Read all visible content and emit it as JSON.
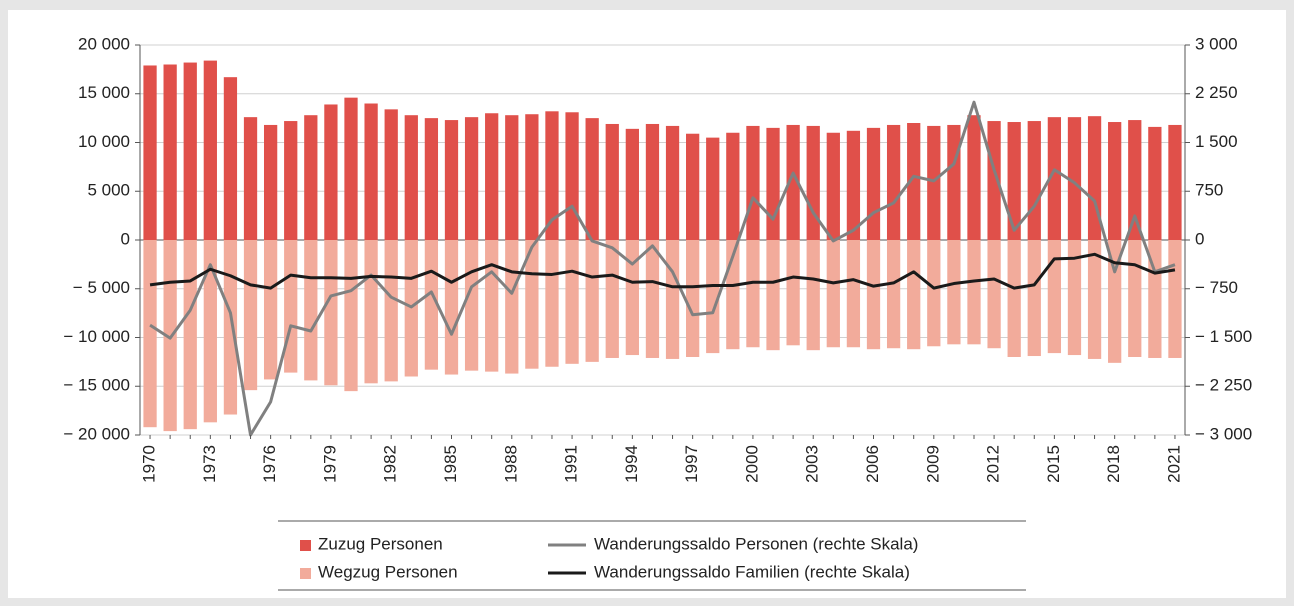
{
  "chart_data": {
    "type": "bar",
    "categories": [
      "1970",
      null,
      null,
      "1973",
      null,
      null,
      "1976",
      null,
      null,
      "1979",
      null,
      null,
      "1982",
      null,
      null,
      "1985",
      null,
      null,
      "1988",
      null,
      null,
      "1991",
      null,
      null,
      "1994",
      null,
      null,
      "1997",
      null,
      null,
      "2000",
      null,
      null,
      "2003",
      null,
      null,
      "2006",
      null,
      null,
      "2009",
      null,
      null,
      "2012",
      null,
      null,
      "2015",
      null,
      null,
      "2018",
      null,
      null,
      "2021"
    ],
    "series": [
      {
        "name": "Zuzug Personen",
        "type": "bar",
        "color": "#e0504a",
        "values": [
          17900,
          18000,
          18200,
          18400,
          16700,
          12600,
          11800,
          12200,
          12800,
          13900,
          14600,
          14000,
          13400,
          12800,
          12500,
          12300,
          12600,
          13000,
          12800,
          12900,
          13200,
          13100,
          12500,
          11900,
          11400,
          11900,
          11700,
          10900,
          10500,
          11000,
          11700,
          11500,
          11800,
          11700,
          11000,
          11200,
          11500,
          11800,
          12000,
          11700,
          11800,
          12800,
          12200,
          12100,
          12200,
          12600,
          12600,
          12700,
          12100,
          12300,
          11600,
          11800
        ]
      },
      {
        "name": "Wegzug Personen",
        "type": "bar",
        "color": "#f2ab9b",
        "values": [
          -19200,
          -19600,
          -19400,
          -18700,
          -17900,
          -15400,
          -14300,
          -13600,
          -14400,
          -14900,
          -15500,
          -14700,
          -14500,
          -14000,
          -13300,
          -13800,
          -13400,
          -13500,
          -13700,
          -13200,
          -13000,
          -12700,
          -12500,
          -12100,
          -11800,
          -12100,
          -12200,
          -12000,
          -11600,
          -11200,
          -11000,
          -11300,
          -10800,
          -11300,
          -11000,
          -11000,
          -11200,
          -11100,
          -11200,
          -10900,
          -10700,
          -10700,
          -11100,
          -12000,
          -11900,
          -11600,
          -11800,
          -12200,
          -12600,
          -12000,
          -12100,
          -12100
        ]
      },
      {
        "name": "Wanderungssaldo Personen (rechte Skala)",
        "type": "line",
        "axis": "y2",
        "color": "#808080",
        "values": [
          -1310,
          -1510,
          -1080,
          -380,
          -1120,
          -3000,
          -2490,
          -1320,
          -1400,
          -860,
          -780,
          -540,
          -880,
          -1030,
          -800,
          -1450,
          -720,
          -490,
          -820,
          -110,
          310,
          520,
          -15,
          -120,
          -370,
          -90,
          -490,
          -1150,
          -1120,
          -250,
          650,
          320,
          1030,
          420,
          -15,
          150,
          420,
          570,
          980,
          910,
          1170,
          2120,
          1080,
          150,
          520,
          1080,
          880,
          600,
          -490,
          370,
          -490,
          -380
        ]
      },
      {
        "name": "Wanderungssaldo Familien (rechte Skala)",
        "type": "line",
        "axis": "y2",
        "color": "#1a1a1a",
        "values": [
          -690,
          -650,
          -630,
          -450,
          -550,
          -690,
          -740,
          -540,
          -580,
          -580,
          -590,
          -560,
          -570,
          -590,
          -480,
          -650,
          -490,
          -380,
          -490,
          -520,
          -530,
          -480,
          -570,
          -540,
          -650,
          -640,
          -720,
          -720,
          -700,
          -700,
          -650,
          -650,
          -570,
          -600,
          -660,
          -610,
          -710,
          -660,
          -490,
          -740,
          -670,
          -630,
          -600,
          -740,
          -690,
          -290,
          -280,
          -220,
          -350,
          -380,
          -510,
          -460
        ]
      }
    ],
    "ylim": [
      -20000,
      20000
    ],
    "yticks": [
      {
        "value": -20000,
        "label": "− 20 000"
      },
      {
        "value": -15000,
        "label": "− 15 000"
      },
      {
        "value": -10000,
        "label": "− 10 000"
      },
      {
        "value": -5000,
        "label": "− 5 000"
      },
      0,
      {
        "value": 5000,
        "label": "5 000"
      },
      {
        "value": 10000,
        "label": "10 000"
      },
      {
        "value": 15000,
        "label": "15 000"
      },
      {
        "value": 20000,
        "label": "20 000"
      }
    ],
    "y2lim": [
      -3000,
      3000
    ],
    "y2ticks": [
      {
        "value": -3000,
        "label": "− 3 000"
      },
      {
        "value": -2250,
        "label": "− 2 250"
      },
      {
        "value": -1500,
        "label": "− 1 500"
      },
      {
        "value": -750,
        "label": "− 750"
      },
      0,
      750,
      {
        "value": 1500,
        "label": "1 500"
      },
      {
        "value": 2250,
        "label": "2 250"
      },
      {
        "value": 3000,
        "label": "3 000"
      }
    ],
    "grid": true
  }
}
